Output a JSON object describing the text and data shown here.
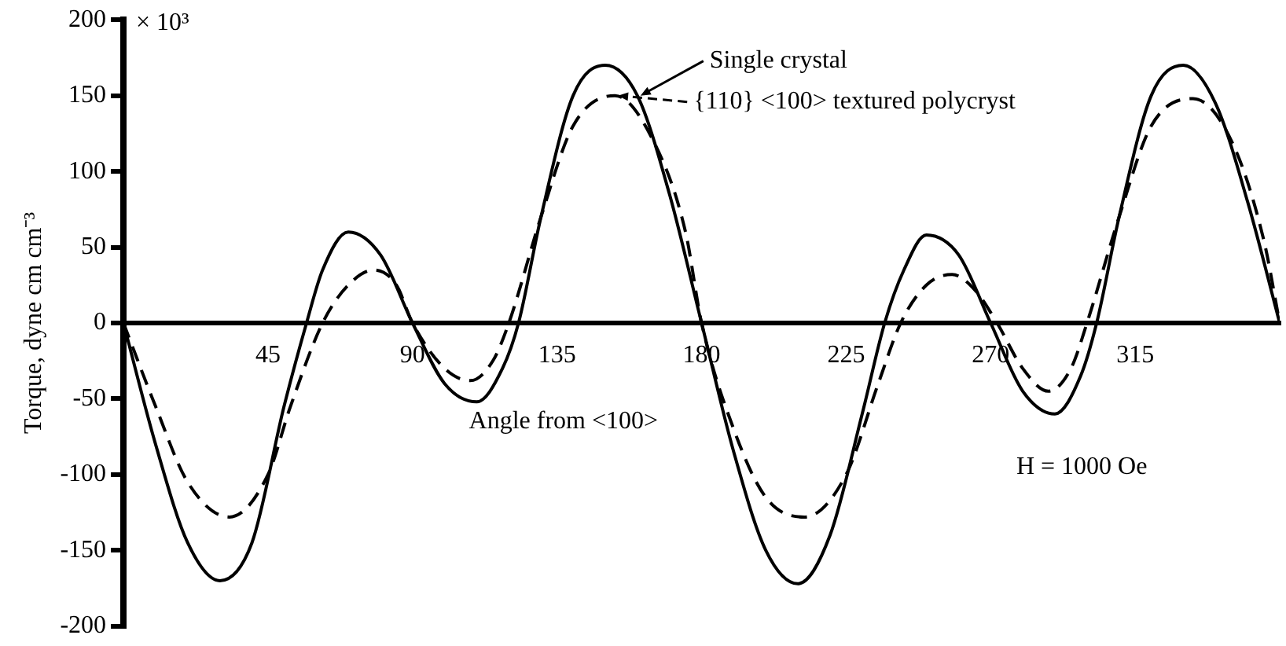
{
  "chart_data": {
    "type": "line",
    "xlabel": "Angle from <100>",
    "ylabel": "Torque, dyne cm cm⁻³",
    "xlim": [
      0,
      360
    ],
    "xticks": [
      45,
      90,
      135,
      180,
      225,
      270,
      315
    ],
    "ylim": [
      -200,
      200
    ],
    "yticks": [
      -200,
      -150,
      -100,
      -50,
      0,
      50,
      100,
      150,
      200
    ],
    "grid": false,
    "legend": "top",
    "marker": "none",
    "series": [
      {
        "name": "Single crystal",
        "color": "#000000",
        "line_style": "solid",
        "x": [
          0,
          10,
          20,
          30,
          40,
          50,
          57,
          62,
          70,
          80,
          90,
          100,
          110,
          118,
          123,
          130,
          140,
          150,
          160,
          170,
          180,
          190,
          200,
          210,
          220,
          230,
          237,
          243,
          250,
          260,
          270,
          280,
          290,
          298,
          303,
          310,
          320,
          330,
          340,
          350,
          360
        ],
        "values": [
          0,
          -80,
          -145,
          -170,
          -145,
          -55,
          0,
          35,
          60,
          45,
          0,
          -40,
          -52,
          -30,
          0,
          70,
          150,
          170,
          150,
          85,
          0,
          -85,
          -150,
          -172,
          -140,
          -60,
          0,
          35,
          58,
          45,
          0,
          -45,
          -60,
          -35,
          0,
          70,
          150,
          170,
          145,
          80,
          0
        ]
      },
      {
        "name": "{110} <100> textured polycryst",
        "color": "#000000",
        "line_style": "dashed",
        "x": [
          0,
          10,
          20,
          33,
          45,
          52,
          62,
          70,
          78,
          85,
          90,
          100,
          108,
          115,
          120,
          130,
          140,
          153,
          165,
          175,
          180,
          190,
          200,
          212,
          225,
          235,
          242,
          250,
          258,
          265,
          272,
          280,
          288,
          295,
          300,
          310,
          320,
          333,
          345,
          355,
          360
        ],
        "values": [
          0,
          -55,
          -105,
          -128,
          -100,
          -55,
          0,
          25,
          35,
          25,
          0,
          -30,
          -38,
          -25,
          0,
          70,
          130,
          150,
          120,
          60,
          0,
          -70,
          -115,
          -128,
          -100,
          -40,
          0,
          25,
          32,
          22,
          0,
          -30,
          -45,
          -30,
          0,
          70,
          130,
          148,
          120,
          55,
          0
        ]
      }
    ],
    "annotations": [
      "× 10³",
      "H = 1000 Oe"
    ]
  }
}
